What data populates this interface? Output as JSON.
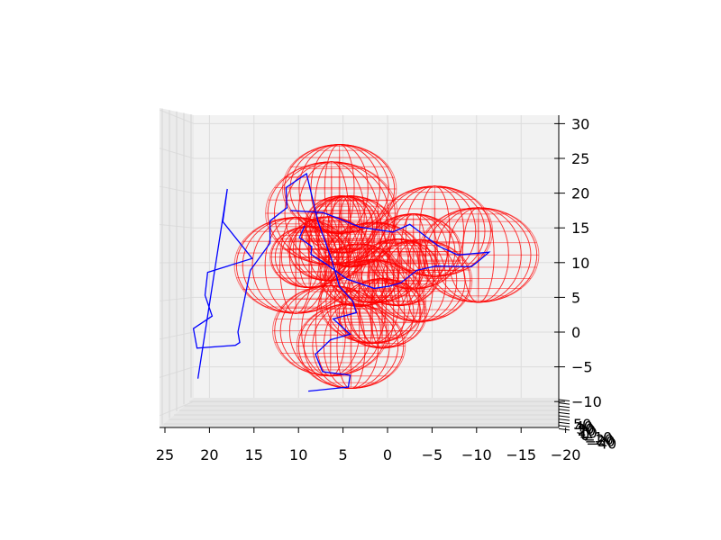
{
  "chart_data": {
    "type": "3d-wireframe",
    "title": "",
    "grid": true,
    "view": "front (looking along y)",
    "axes": {
      "x": {
        "label": "",
        "range": [
          25,
          -20
        ],
        "reversed": true,
        "ticks": [
          25,
          20,
          15,
          10,
          5,
          0,
          -5,
          -10,
          -15,
          -20
        ],
        "tick_labels": [
          "25",
          "20",
          "15",
          "10",
          "5",
          "0",
          "−5",
          "−10",
          "−15",
          "−20"
        ]
      },
      "z": {
        "label": "",
        "range": [
          -10,
          30
        ],
        "ticks": [
          30,
          25,
          20,
          15,
          10,
          5,
          0,
          -5,
          -10
        ],
        "tick_labels": [
          "30",
          "25",
          "20",
          "15",
          "10",
          "5",
          "0",
          "−5",
          "−10"
        ]
      },
      "y": {
        "label": "",
        "edge_on": true,
        "tick_labels": [
          "50",
          "40",
          "30",
          "20",
          "10",
          "0",
          "−10",
          "−20",
          "−30",
          "−40"
        ]
      }
    },
    "series": [
      {
        "kind": "line",
        "color": "#0000ff",
        "points": [
          [
            21.3,
            -6.7
          ],
          [
            18.0,
            20.6
          ],
          [
            18.5,
            15.9
          ],
          [
            15.2,
            10.6
          ],
          [
            20.2,
            8.6
          ],
          [
            20.5,
            5.3
          ],
          [
            19.7,
            2.3
          ],
          [
            21.8,
            0.5
          ],
          [
            21.4,
            -2.3
          ],
          [
            17.1,
            -1.9
          ],
          [
            16.6,
            -1.5
          ],
          [
            16.8,
            0.0
          ],
          [
            15.4,
            8.9
          ],
          [
            13.2,
            12.8
          ],
          [
            13.2,
            16.0
          ],
          [
            11.3,
            17.9
          ],
          [
            11.4,
            20.8
          ],
          [
            9.1,
            22.8
          ],
          [
            7.8,
            15.9
          ],
          [
            6.3,
            10.5
          ],
          [
            5.4,
            6.6
          ],
          [
            3.9,
            4.4
          ],
          [
            3.5,
            2.8
          ],
          [
            6.1,
            1.9
          ],
          [
            4.2,
            -0.3
          ],
          [
            6.4,
            -1.1
          ],
          [
            8.1,
            -3.2
          ],
          [
            7.3,
            -5.7
          ],
          [
            4.2,
            -6.2
          ],
          [
            4.4,
            -7.9
          ],
          [
            8.9,
            -8.5
          ]
        ]
      },
      {
        "kind": "line",
        "color": "#0000ff",
        "points": [
          [
            10.9,
            17.5
          ],
          [
            7.3,
            17.2
          ],
          [
            5.6,
            16.4
          ],
          [
            3.1,
            15.1
          ],
          [
            -0.6,
            14.4
          ],
          [
            -2.5,
            15.5
          ],
          [
            -5.7,
            12.4
          ],
          [
            -7.9,
            11.1
          ],
          [
            -11.4,
            11.5
          ],
          [
            -10.1,
            10.1
          ],
          [
            -9.4,
            9.4
          ],
          [
            -5.4,
            9.5
          ],
          [
            -3.3,
            8.9
          ],
          [
            -1.5,
            7.1
          ],
          [
            -0.2,
            6.6
          ],
          [
            1.5,
            6.3
          ],
          [
            4.5,
            7.6
          ],
          [
            7.0,
            9.9
          ],
          [
            8.6,
            11.2
          ],
          [
            8.5,
            12.3
          ],
          [
            9.9,
            13.6
          ],
          [
            9.3,
            15.3
          ]
        ]
      },
      {
        "kind": "spheres",
        "color": "#ff0000",
        "spheres": [
          [
            5.4,
            20.6,
            6.4
          ],
          [
            6.3,
            17.1,
            7.4
          ],
          [
            -5.3,
            14.5,
            6.5
          ],
          [
            -10.2,
            11.1,
            6.8
          ],
          [
            10.3,
            9.6,
            6.9
          ],
          [
            4.2,
            14.5,
            5.1
          ],
          [
            1.7,
            4.4,
            6.0
          ],
          [
            0.6,
            2.7,
            5.0
          ],
          [
            -3.6,
            7.4,
            5.9
          ],
          [
            6.4,
            0.2,
            6.5
          ],
          [
            4.1,
            -2.0,
            6.1
          ],
          [
            1.5,
            10.0,
            5.8
          ],
          [
            -2.9,
            11.6,
            5.4
          ],
          [
            6.6,
            12.0,
            4.6
          ],
          [
            3.2,
            8.2,
            4.5
          ],
          [
            -1.2,
            8.6,
            4.8
          ],
          [
            5.2,
            15.5,
            4.1
          ],
          [
            8.8,
            10.8,
            4.4
          ]
        ]
      }
    ]
  }
}
